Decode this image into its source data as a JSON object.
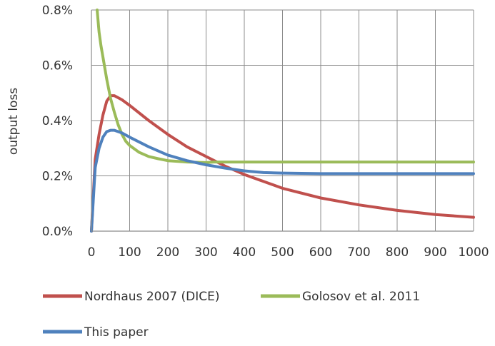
{
  "chart_data": {
    "type": "line",
    "title": "",
    "xlabel": "",
    "ylabel": "output loss",
    "xlim": [
      0,
      1000
    ],
    "ylim": [
      0.0,
      0.8
    ],
    "x_ticks": [
      0,
      100,
      200,
      300,
      400,
      500,
      600,
      700,
      800,
      900,
      1000
    ],
    "x_tick_labels": [
      "0",
      "100",
      "200",
      "300",
      "400",
      "500",
      "600",
      "700",
      "800",
      "900",
      "1000"
    ],
    "y_ticks": [
      0.0,
      0.2,
      0.4,
      0.6,
      0.8
    ],
    "y_tick_labels": [
      "0.0%",
      "0.2%",
      "0.4%",
      "0.6%",
      "0.8%"
    ],
    "grid": true,
    "legend_position": "bottom",
    "series": [
      {
        "name": "Nordhaus 2007 (DICE)",
        "color": "#c0504d",
        "x": [
          0,
          10,
          20,
          30,
          40,
          50,
          60,
          80,
          100,
          150,
          200,
          250,
          300,
          350,
          400,
          450,
          500,
          600,
          700,
          800,
          900,
          1000
        ],
        "y": [
          0.0,
          0.26,
          0.35,
          0.42,
          0.47,
          0.49,
          0.49,
          0.475,
          0.455,
          0.4,
          0.35,
          0.305,
          0.27,
          0.235,
          0.205,
          0.18,
          0.155,
          0.12,
          0.095,
          0.075,
          0.06,
          0.05
        ]
      },
      {
        "name": "Golosov et al. 2011",
        "color": "#9bbb59",
        "x": [
          15,
          20,
          25,
          30,
          40,
          50,
          60,
          70,
          80,
          90,
          100,
          125,
          150,
          175,
          200,
          250,
          300,
          320,
          400,
          500,
          600,
          700,
          800,
          900,
          1000
        ],
        "y": [
          0.8,
          0.72,
          0.67,
          0.63,
          0.55,
          0.48,
          0.43,
          0.385,
          0.35,
          0.325,
          0.31,
          0.285,
          0.27,
          0.262,
          0.255,
          0.25,
          0.248,
          0.25,
          0.25,
          0.25,
          0.25,
          0.25,
          0.25,
          0.25,
          0.25
        ]
      },
      {
        "name": "This paper",
        "color": "#4f81bd",
        "x": [
          0,
          10,
          20,
          30,
          40,
          50,
          60,
          80,
          100,
          150,
          200,
          250,
          300,
          350,
          400,
          450,
          500,
          600,
          700,
          800,
          900,
          1000
        ],
        "y": [
          0.0,
          0.23,
          0.3,
          0.34,
          0.36,
          0.365,
          0.365,
          0.355,
          0.34,
          0.305,
          0.275,
          0.255,
          0.24,
          0.228,
          0.218,
          0.212,
          0.21,
          0.208,
          0.208,
          0.208,
          0.208,
          0.208
        ]
      }
    ]
  }
}
